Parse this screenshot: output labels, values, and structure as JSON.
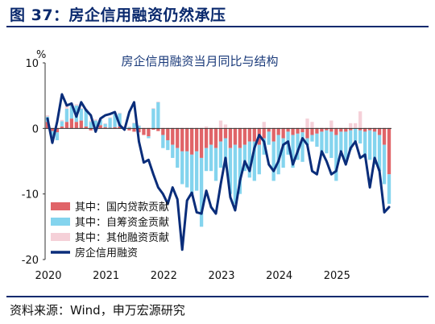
{
  "header": {
    "title": "图 37：房企信用融资仍然承压"
  },
  "footer": {
    "source": "资料来源：Wind，申万宏源研究"
  },
  "colors": {
    "domestic_loans": "#e06468",
    "self_raised": "#84d4ee",
    "other": "#f5d0d8",
    "line": "#0a2d7a",
    "rule": "#0b2a6e"
  },
  "chart_data": {
    "type": "bar",
    "title": "房企信用融资当月同比与结构",
    "y_unit": "%",
    "ylim": [
      -20,
      10
    ],
    "yticks": [
      10,
      0,
      -10,
      -20
    ],
    "xlabels": [
      "2020",
      "2021",
      "2022",
      "2023",
      "2024",
      "2025"
    ],
    "x_start_year": 2020,
    "series": [
      {
        "name": "其中：国内贷款贡献",
        "kind": "bar",
        "values": [
          1.0,
          -0.4,
          -0.6,
          0.3,
          1.0,
          1.5,
          1.0,
          1.2,
          0.3,
          -0.3,
          0.2,
          0.5,
          0.2,
          0.1,
          0.2,
          0.3,
          0.0,
          -0.3,
          -0.5,
          -0.6,
          -1.0,
          -1.2,
          -0.2,
          -0.4,
          -1.0,
          -1.8,
          -2.5,
          -3.0,
          -3.5,
          -3.5,
          -4.0,
          -3.5,
          -4.5,
          -3.0,
          -2.5,
          -3.0,
          -2.0,
          -1.5,
          -3.0,
          -2.5,
          -3.0,
          -2.5,
          -2.0,
          -2.0,
          -2.5,
          -1.5,
          -0.5,
          -2.0,
          -1.0,
          -1.5,
          -0.5,
          -1.0,
          -0.8,
          -0.6,
          -1.5,
          -1.0,
          -0.8,
          -0.5,
          -0.3,
          -0.5,
          -1.0,
          -0.5,
          -0.5,
          -0.3,
          0.0,
          -0.3,
          -0.5,
          -0.3,
          -0.5,
          -1.0,
          -2.5,
          -7.0
        ]
      },
      {
        "name": "其中：自筹资金贡献",
        "kind": "bar",
        "values": [
          0.8,
          -0.8,
          -1.2,
          0.8,
          2.0,
          2.0,
          2.5,
          1.8,
          2.5,
          1.0,
          1.0,
          0.8,
          0.5,
          1.5,
          2.0,
          2.0,
          0.2,
          0.2,
          0.8,
          0.4,
          0.0,
          -0.3,
          3.0,
          4.0,
          -2.0,
          -1.5,
          -2.0,
          -3.0,
          -5.0,
          -5.5,
          -6.0,
          -6.0,
          -10.5,
          -3.5,
          -4.0,
          -5.0,
          -4.0,
          -4.5,
          -7.0,
          -9.0,
          -7.0,
          -4.0,
          -5.5,
          -6.0,
          -4.5,
          -2.5,
          -2.0,
          -6.0,
          -6.0,
          -4.5,
          -3.5,
          -5.0,
          -4.0,
          -4.5,
          -1.0,
          -1.0,
          -2.0,
          -3.5,
          -3.5,
          -4.0,
          -7.0,
          -3.0,
          -4.5,
          -3.0,
          -2.0,
          -2.0,
          -4.0,
          -4.5,
          -5.0,
          -5.5,
          -6.0,
          -4.5
        ]
      },
      {
        "name": "其中：其他融资贡献",
        "kind": "bar",
        "values": [
          0.2,
          0.1,
          0.1,
          0.2,
          0.5,
          0.3,
          0.2,
          0.1,
          0.2,
          0.2,
          0.2,
          0.1,
          0.1,
          0.1,
          0.1,
          0.1,
          0.1,
          0.1,
          0.1,
          0.1,
          0.1,
          0.1,
          0.1,
          0.1,
          0.1,
          0.1,
          0.1,
          0.1,
          0.1,
          0.1,
          0.1,
          0.1,
          0.1,
          0.3,
          0.1,
          0.1,
          1.2,
          0.6,
          0.1,
          0.1,
          0.1,
          0.1,
          0.1,
          0.1,
          0.1,
          1.0,
          0.1,
          0.1,
          0.1,
          0.1,
          0.1,
          0.1,
          0.1,
          0.1,
          1.5,
          1.0,
          0.1,
          0.1,
          0.1,
          1.2,
          0.1,
          0.1,
          0.1,
          0.8,
          0.8,
          2.6,
          0.1,
          0.1,
          0.1,
          0.1,
          0.1,
          0.1
        ]
      },
      {
        "name": "房企信用融资",
        "kind": "line",
        "values": [
          1.5,
          -2.2,
          1.0,
          5.2,
          3.5,
          3.8,
          1.8,
          4.0,
          2.8,
          2.0,
          -0.5,
          1.5,
          2.0,
          2.2,
          2.5,
          0.5,
          -0.2,
          2.5,
          4.0,
          -2.0,
          -5.2,
          -4.8,
          -7.0,
          -9.0,
          -10.0,
          -11.5,
          -9.0,
          -10.8,
          -18.5,
          -11.0,
          -9.8,
          -12.8,
          -13.0,
          -9.5,
          -12.0,
          -13.0,
          -8.5,
          -4.5,
          -10.5,
          -12.5,
          -8.0,
          -5.0,
          -6.5,
          -3.0,
          -1.0,
          -2.0,
          -5.5,
          -6.5,
          -5.0,
          -2.5,
          -2.0,
          -5.5,
          -3.5,
          -1.5,
          -2.5,
          -6.5,
          -7.0,
          -3.5,
          -5.0,
          -7.0,
          -6.5,
          -3.5,
          -5.5,
          -3.0,
          -2.0,
          -4.5,
          -4.0,
          -9.0,
          -4.5,
          -6.5,
          -12.8,
          -12.0
        ]
      }
    ]
  }
}
